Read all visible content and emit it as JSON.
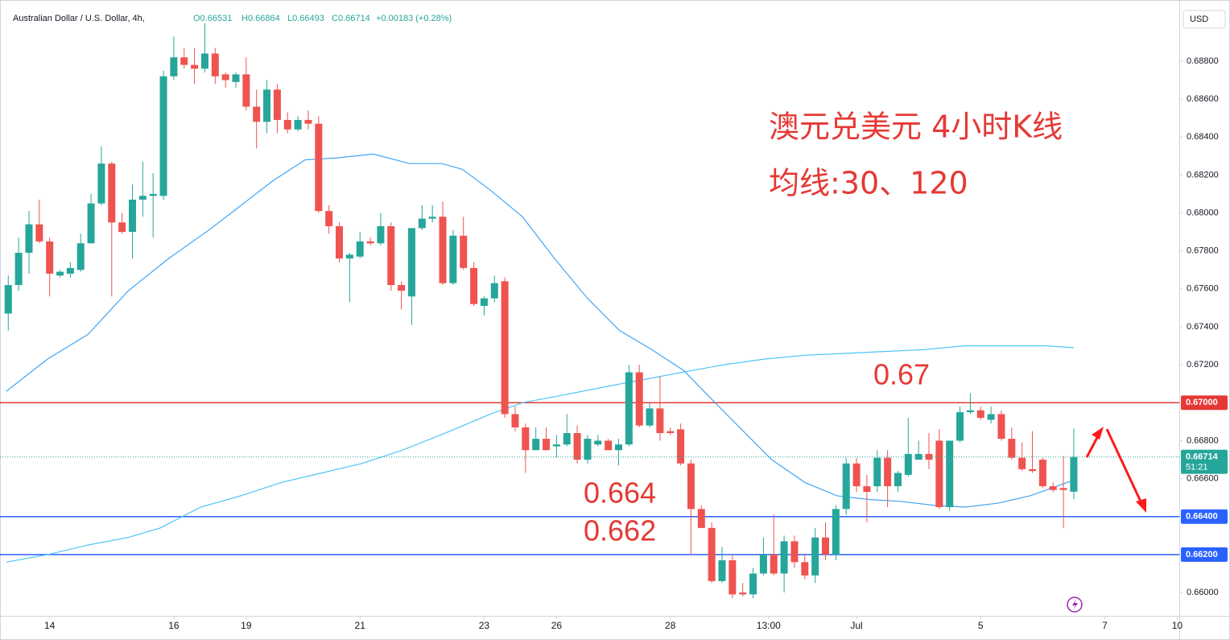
{
  "chart_data": {
    "type": "candlestick",
    "symbol_title": "Australian Dollar / U.S. Dollar, 4h,",
    "ohlc_labels": [
      "O0.66531",
      "H0.66864",
      "L0.66493",
      "C0.66714",
      "+0.00183 (+0.28%)"
    ],
    "currency": "USD",
    "annotations": [
      "澳元兑美元 4小时K线",
      "均线:30、120",
      "0.67",
      "0.664",
      "0.662"
    ],
    "up_color": "#26a69a",
    "down_color": "#ef5350",
    "open": [
      0.6747,
      0.6762,
      0.6779,
      0.6794,
      0.6785,
      0.6767,
      0.6768,
      0.677,
      0.6784,
      0.6805,
      0.6826,
      0.6795,
      0.679,
      0.6807,
      0.6809,
      0.6809,
      0.6872,
      0.6882,
      0.6878,
      0.6876,
      0.6884,
      0.6873,
      0.6869,
      0.6873,
      0.6856,
      0.6848,
      0.6865,
      0.6849,
      0.6844,
      0.6849,
      0.6847,
      0.6801,
      0.6793,
      0.6776,
      0.6777,
      0.6785,
      0.6784,
      0.6793,
      0.6762,
      0.6756,
      0.6792,
      0.6797,
      0.6798,
      0.6763,
      0.6788,
      0.6771,
      0.6751,
      0.6755,
      0.6764,
      0.6694,
      0.6687,
      0.6675,
      0.6681,
      0.6677,
      0.6678,
      0.6684,
      0.667,
      0.6678,
      0.668,
      0.6675,
      0.6678,
      0.6716,
      0.6688,
      0.6697,
      0.6685,
      0.6686,
      0.6668,
      0.6644,
      0.6634,
      0.6606,
      0.6617,
      0.66,
      0.6599,
      0.661,
      0.662,
      0.661,
      0.6627,
      0.6616,
      0.6609,
      0.6629,
      0.662,
      0.6644,
      0.6668,
      0.6656,
      0.6656,
      0.6671,
      0.6656,
      0.6662,
      0.667,
      0.6673,
      0.668,
      0.6645,
      0.668,
      0.6695,
      0.6696,
      0.6691,
      0.6694,
      0.6681,
      0.6671,
      0.6665,
      0.667,
      0.6656,
      0.6655,
      0.66531
    ],
    "high": [
      0.6767,
      0.6787,
      0.6801,
      0.6807,
      0.6787,
      0.677,
      0.6774,
      0.6789,
      0.681,
      0.6835,
      0.6827,
      0.68,
      0.6815,
      0.6827,
      0.6821,
      0.6875,
      0.6893,
      0.6887,
      0.6887,
      0.69,
      0.6887,
      0.6874,
      0.6874,
      0.6882,
      0.6865,
      0.687,
      0.6868,
      0.6853,
      0.6851,
      0.6854,
      0.6851,
      0.6804,
      0.6795,
      0.6779,
      0.679,
      0.6787,
      0.68,
      0.6795,
      0.6764,
      0.6792,
      0.6804,
      0.6804,
      0.6806,
      0.6791,
      0.6798,
      0.6774,
      0.6756,
      0.6767,
      0.6766,
      0.6698,
      0.6689,
      0.6687,
      0.6687,
      0.6683,
      0.6694,
      0.6688,
      0.6683,
      0.6683,
      0.6681,
      0.6681,
      0.672,
      0.672,
      0.67,
      0.6714,
      0.6687,
      0.6689,
      0.667,
      0.6646,
      0.6637,
      0.6624,
      0.662,
      0.6605,
      0.6613,
      0.6629,
      0.6641,
      0.663,
      0.663,
      0.662,
      0.6634,
      0.6637,
      0.6646,
      0.6671,
      0.6671,
      0.6662,
      0.6675,
      0.6675,
      0.6664,
      0.6692,
      0.668,
      0.6684,
      0.6686,
      0.668,
      0.6698,
      0.6705,
      0.6698,
      0.6698,
      0.6696,
      0.6687,
      0.6679,
      0.6685,
      0.6671,
      0.6658,
      0.6672,
      0.66864
    ],
    "low": [
      0.6738,
      0.6759,
      0.6768,
      0.6784,
      0.6756,
      0.6766,
      0.6766,
      0.6769,
      0.6784,
      0.6804,
      0.6756,
      0.6789,
      0.6776,
      0.6798,
      0.6787,
      0.6807,
      0.687,
      0.6876,
      0.6868,
      0.6874,
      0.6868,
      0.6866,
      0.6866,
      0.6854,
      0.6834,
      0.6842,
      0.6842,
      0.6842,
      0.6843,
      0.6844,
      0.68,
      0.6789,
      0.6774,
      0.6753,
      0.6776,
      0.6783,
      0.6783,
      0.6759,
      0.6749,
      0.6741,
      0.6791,
      0.6795,
      0.6762,
      0.6762,
      0.677,
      0.6751,
      0.6746,
      0.6753,
      0.6692,
      0.6685,
      0.6663,
      0.6675,
      0.6675,
      0.6671,
      0.6677,
      0.6668,
      0.6668,
      0.6677,
      0.6675,
      0.6667,
      0.6677,
      0.6687,
      0.6687,
      0.668,
      0.6683,
      0.6667,
      0.662,
      0.6634,
      0.6605,
      0.6605,
      0.6597,
      0.6598,
      0.6597,
      0.6609,
      0.6609,
      0.66,
      0.6613,
      0.6607,
      0.6605,
      0.6617,
      0.6617,
      0.6641,
      0.6653,
      0.6637,
      0.6653,
      0.6645,
      0.6653,
      0.6661,
      0.667,
      0.6665,
      0.6644,
      0.6643,
      0.6679,
      0.6694,
      0.6691,
      0.6689,
      0.668,
      0.667,
      0.6664,
      0.6663,
      0.6655,
      0.6653,
      0.6634,
      0.66493
    ],
    "close": [
      0.6762,
      0.6779,
      0.6794,
      0.6785,
      0.6768,
      0.6769,
      0.6771,
      0.6784,
      0.6805,
      0.6826,
      0.6795,
      0.679,
      0.6807,
      0.6809,
      0.681,
      0.6872,
      0.6882,
      0.6878,
      0.6876,
      0.6884,
      0.6872,
      0.687,
      0.6873,
      0.6856,
      0.6848,
      0.6865,
      0.6849,
      0.6844,
      0.6849,
      0.6847,
      0.6801,
      0.6793,
      0.6776,
      0.6778,
      0.6785,
      0.6784,
      0.6793,
      0.6762,
      0.6759,
      0.6792,
      0.6797,
      0.6798,
      0.6763,
      0.6788,
      0.6771,
      0.6752,
      0.6755,
      0.6763,
      0.6694,
      0.6687,
      0.6675,
      0.6681,
      0.6675,
      0.6678,
      0.6684,
      0.667,
      0.6681,
      0.668,
      0.6675,
      0.6678,
      0.6716,
      0.6688,
      0.6697,
      0.6684,
      0.6684,
      0.6668,
      0.6644,
      0.6634,
      0.6606,
      0.6617,
      0.6599,
      0.6599,
      0.661,
      0.662,
      0.661,
      0.6627,
      0.6616,
      0.6609,
      0.6629,
      0.662,
      0.6644,
      0.6668,
      0.6656,
      0.6653,
      0.6671,
      0.6656,
      0.6663,
      0.6673,
      0.6673,
      0.667,
      0.6645,
      0.668,
      0.6695,
      0.6696,
      0.6692,
      0.6694,
      0.6681,
      0.6671,
      0.6665,
      0.6664,
      0.6656,
      0.6654,
      0.6654,
      0.66714
    ],
    "overlays": [
      {
        "type": "line",
        "color": "#42a5f5",
        "x": [
          -0.2,
          3.8,
          7.7,
          11.6,
          15.5,
          19.4,
          22.5,
          25.6,
          28.7,
          31.8,
          35.3,
          38.8,
          41.9,
          43.9,
          46.6,
          49.7,
          52.8,
          56.0,
          59.1,
          62.2,
          65.3,
          67.6,
          70.7,
          73.8,
          77.0,
          80.1,
          83.2,
          86.3,
          89.4,
          92.5,
          95.6,
          98.8,
          101.9,
          102.9
        ],
        "values": [
          0.6706,
          0.6723,
          0.6736,
          0.6759,
          0.6776,
          0.6791,
          0.6804,
          0.6817,
          0.6828,
          0.6829,
          0.6831,
          0.6826,
          0.6826,
          0.6823,
          0.6812,
          0.6798,
          0.6776,
          0.6755,
          0.6738,
          0.6728,
          0.6717,
          0.6704,
          0.6687,
          0.667,
          0.6658,
          0.6651,
          0.6649,
          0.6648,
          0.6646,
          0.6645,
          0.6647,
          0.6651,
          0.6657,
          0.6659
        ]
      },
      {
        "type": "line",
        "color": "#4fc3f7",
        "x": [
          -0.2,
          3.8,
          7.7,
          11.6,
          14.7,
          18.6,
          22.5,
          26.4,
          30.3,
          34.2,
          38.1,
          42.7,
          46.6,
          49.7,
          53.6,
          58.3,
          62.2,
          66.1,
          69.2,
          73.1,
          77.0,
          80.9,
          84.7,
          88.6,
          92.5,
          96.4,
          100.3,
          103.0
        ],
        "values": [
          0.6616,
          0.662,
          0.6625,
          0.6629,
          0.6634,
          0.6645,
          0.6651,
          0.6658,
          0.6663,
          0.6668,
          0.6675,
          0.6685,
          0.6694,
          0.67,
          0.6704,
          0.6709,
          0.6713,
          0.6717,
          0.672,
          0.6723,
          0.6725,
          0.6726,
          0.6727,
          0.6728,
          0.673,
          0.673,
          0.673,
          0.6729
        ]
      }
    ],
    "hlines": [
      {
        "value": 0.67,
        "label": "0.67000",
        "color": "#e53935"
      },
      {
        "value": 0.664,
        "label": "0.66400",
        "color": "#2962ff"
      },
      {
        "value": 0.662,
        "label": "0.66200",
        "color": "#2962ff"
      }
    ],
    "last_price": {
      "value": 0.66714,
      "label": "0.66714",
      "countdown": "51:21",
      "color": "#26a69a"
    },
    "xlim": [
      -0.8,
      113.2
    ],
    "xticks": [
      {
        "value": 4,
        "label": "14"
      },
      {
        "value": 16,
        "label": "16"
      },
      {
        "value": 23,
        "label": "19"
      },
      {
        "value": 34,
        "label": "21"
      },
      {
        "value": 46,
        "label": "23"
      },
      {
        "value": 53,
        "label": "26"
      },
      {
        "value": 64,
        "label": "28"
      },
      {
        "value": 73.5,
        "label": "13:00"
      },
      {
        "value": 82,
        "label": "Jul"
      },
      {
        "value": 94,
        "label": "5"
      },
      {
        "value": 106,
        "label": "7"
      },
      {
        "value": 113,
        "label": "10"
      }
    ],
    "ylim": [
      0.65877,
      0.69122
    ],
    "yticks": [
      {
        "value": 0.66,
        "label": "0.66000"
      },
      {
        "value": 0.662,
        "label": "0.66200"
      },
      {
        "value": 0.664,
        "label": "0.66400"
      },
      {
        "value": 0.666,
        "label": "0.66600"
      },
      {
        "value": 0.668,
        "label": "0.66800"
      },
      {
        "value": 0.67,
        "label": "0.67000"
      },
      {
        "value": 0.672,
        "label": "0.67200"
      },
      {
        "value": 0.674,
        "label": "0.67400"
      },
      {
        "value": 0.676,
        "label": "0.67600"
      },
      {
        "value": 0.678,
        "label": "0.67800"
      },
      {
        "value": 0.68,
        "label": "0.68000"
      },
      {
        "value": 0.682,
        "label": "0.68200"
      },
      {
        "value": 0.684,
        "label": "0.68400"
      },
      {
        "value": 0.686,
        "label": "0.68600"
      },
      {
        "value": 0.688,
        "label": "0.68800"
      }
    ],
    "grid": false
  }
}
